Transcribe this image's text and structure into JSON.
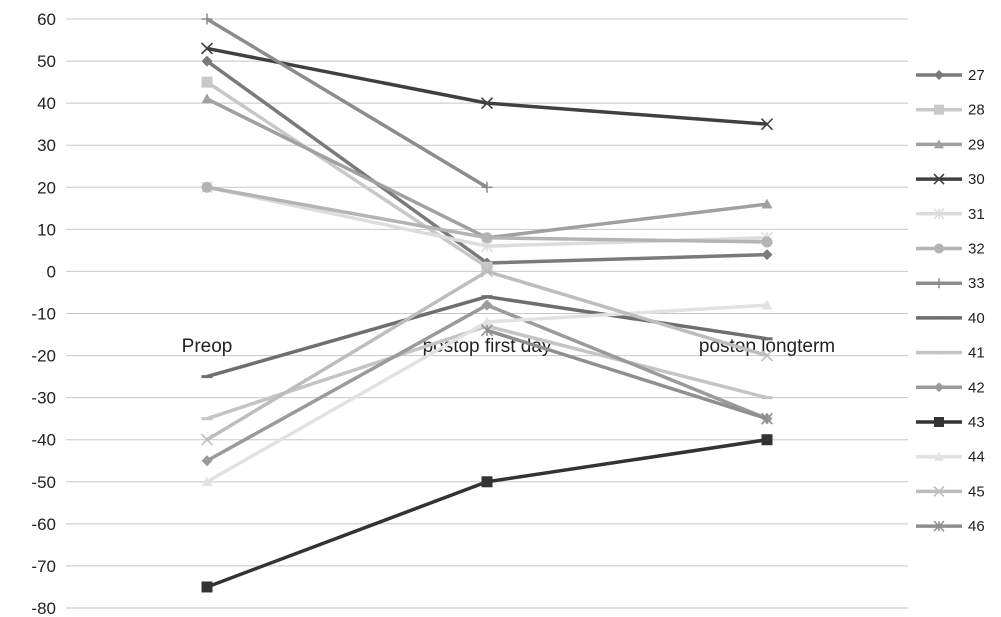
{
  "chart_data": {
    "type": "line",
    "categories": [
      "Preop",
      "postop first day",
      "postop longterm"
    ],
    "ylim": [
      -80,
      60
    ],
    "yticks": [
      "60",
      "50",
      "40",
      "30",
      "20",
      "10",
      "0",
      "-10",
      "-20",
      "-30",
      "-40",
      "-50",
      "-60",
      "-70",
      "-80"
    ],
    "grid": "horizontal",
    "legend_position": "right",
    "series": [
      {
        "name": "27",
        "values": [
          50,
          2,
          4
        ],
        "color": "#7a7a7a",
        "marker": "diamond"
      },
      {
        "name": "28",
        "values": [
          45,
          1,
          null
        ],
        "color": "#c8c8c8",
        "marker": "square"
      },
      {
        "name": "29",
        "values": [
          41,
          8,
          16
        ],
        "color": "#a0a0a0",
        "marker": "triangle"
      },
      {
        "name": "30",
        "values": [
          53,
          40,
          35
        ],
        "color": "#404040",
        "marker": "x"
      },
      {
        "name": "31",
        "values": [
          20,
          6,
          8
        ],
        "color": "#dcdcdc",
        "marker": "asterisk"
      },
      {
        "name": "32",
        "values": [
          20,
          8,
          7
        ],
        "color": "#b4b4b4",
        "marker": "circle"
      },
      {
        "name": "33",
        "values": [
          60,
          20,
          null
        ],
        "color": "#8c8c8c",
        "marker": "plus"
      },
      {
        "name": "40",
        "values": [
          -25,
          -6,
          -16
        ],
        "color": "#6e6e6e",
        "marker": "dash"
      },
      {
        "name": "41",
        "values": [
          -35,
          -13,
          -30
        ],
        "color": "#c4c4c4",
        "marker": "dash"
      },
      {
        "name": "42",
        "values": [
          -45,
          -8,
          -35
        ],
        "color": "#9a9a9a",
        "marker": "diamond"
      },
      {
        "name": "43",
        "values": [
          -75,
          -50,
          -40
        ],
        "color": "#333333",
        "marker": "square"
      },
      {
        "name": "44",
        "values": [
          -50,
          -12,
          -8
        ],
        "color": "#e2e2e2",
        "marker": "triangle"
      },
      {
        "name": "45",
        "values": [
          -40,
          0,
          -20
        ],
        "color": "#bdbdbd",
        "marker": "x"
      },
      {
        "name": "46",
        "values": [
          null,
          -14,
          -35
        ],
        "color": "#8f8f8f",
        "marker": "asterisk"
      }
    ]
  }
}
